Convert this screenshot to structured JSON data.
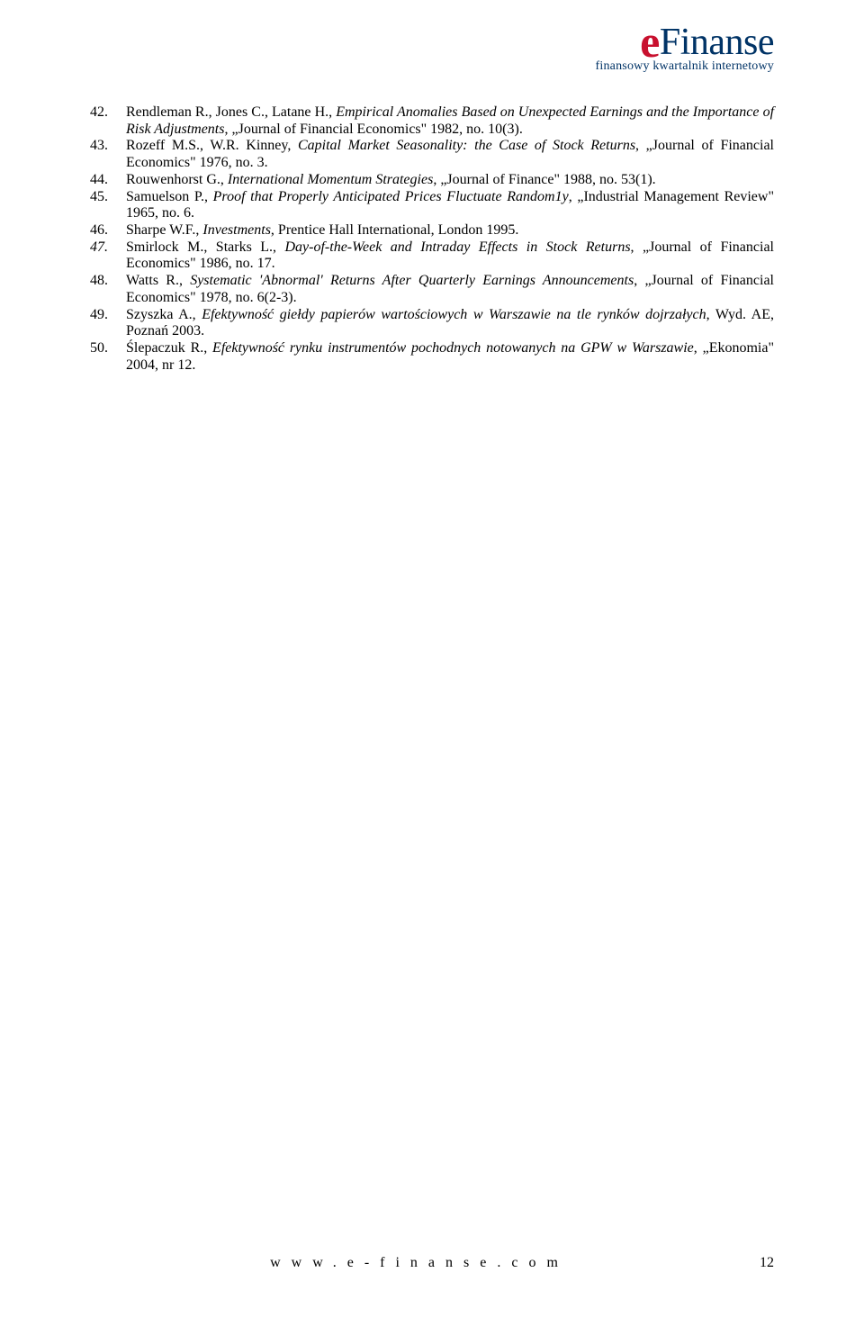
{
  "logo": {
    "e": "e",
    "rest": "Finanse",
    "tagline": "finansowy kwartalnik internetowy",
    "e_color": "#c8102e",
    "rest_color": "#003366",
    "tagline_color": "#003366"
  },
  "references": [
    {
      "num": "42.",
      "author": "Rendleman R., Jones C., Latane H.",
      "title": "Empirical Anomalies Based on Unexpected Earnings and the Importance of Risk Adjustments",
      "tail": ", „Journal of Financial Economics\" 1982, no. 10(3)."
    },
    {
      "num": "43.",
      "author": "Rozeff M.S., W.R. Kinney",
      "title": "Capital Market Seasonality: the Case of Stock Returns",
      "tail": ", „Journal of Financial Economics\" 1976, no. 3."
    },
    {
      "num": "44.",
      "author": "Rouwenhorst G.",
      "title": "International Momentum Strategies",
      "tail": ", „Journal of Finance\" 1988, no. 53(1)."
    },
    {
      "num": "45.",
      "author": "Samuelson P.",
      "title": "Proof that Properly Anticipated Prices Fluctuate Random1y",
      "tail": ", „Industrial Management Review\" 1965, no. 6."
    },
    {
      "num": "46.",
      "author": "Sharpe W.F.",
      "title": "Investments",
      "tail": ", Prentice Hall International, London 1995."
    },
    {
      "num": "47.",
      "num_italic": true,
      "author": "Smirlock M., Starks L.",
      "title": "Day-of-the-Week and Intraday Effects in Stock Returns",
      "tail": ", „Journal of Financial Economics\" 1986, no. 17."
    },
    {
      "num": "48.",
      "author": "Watts R.",
      "title": "Systematic 'Abnormal' Returns After Quarterly Earnings Announcements",
      "tail": ", „Journal of Financial Economics\" 1978, no. 6(2-3)."
    },
    {
      "num": "49.",
      "author": "Szyszka A.",
      "title": "Efektywność giełdy papierów wartościowych w Warszawie na tle rynków dojrzałych",
      "tail": ", Wyd. AE, Poznań 2003."
    },
    {
      "num": "50.",
      "author": "Ślepaczuk R.",
      "title": "Efektywność rynku instrumentów pochodnych notowanych na GPW w Warszawie",
      "tail": ", „Ekonomia\" 2004, nr 12."
    }
  ],
  "footer": {
    "url": "www.e-finanse.com",
    "page_number": "12"
  },
  "colors": {
    "text": "#000000",
    "background": "#ffffff"
  }
}
